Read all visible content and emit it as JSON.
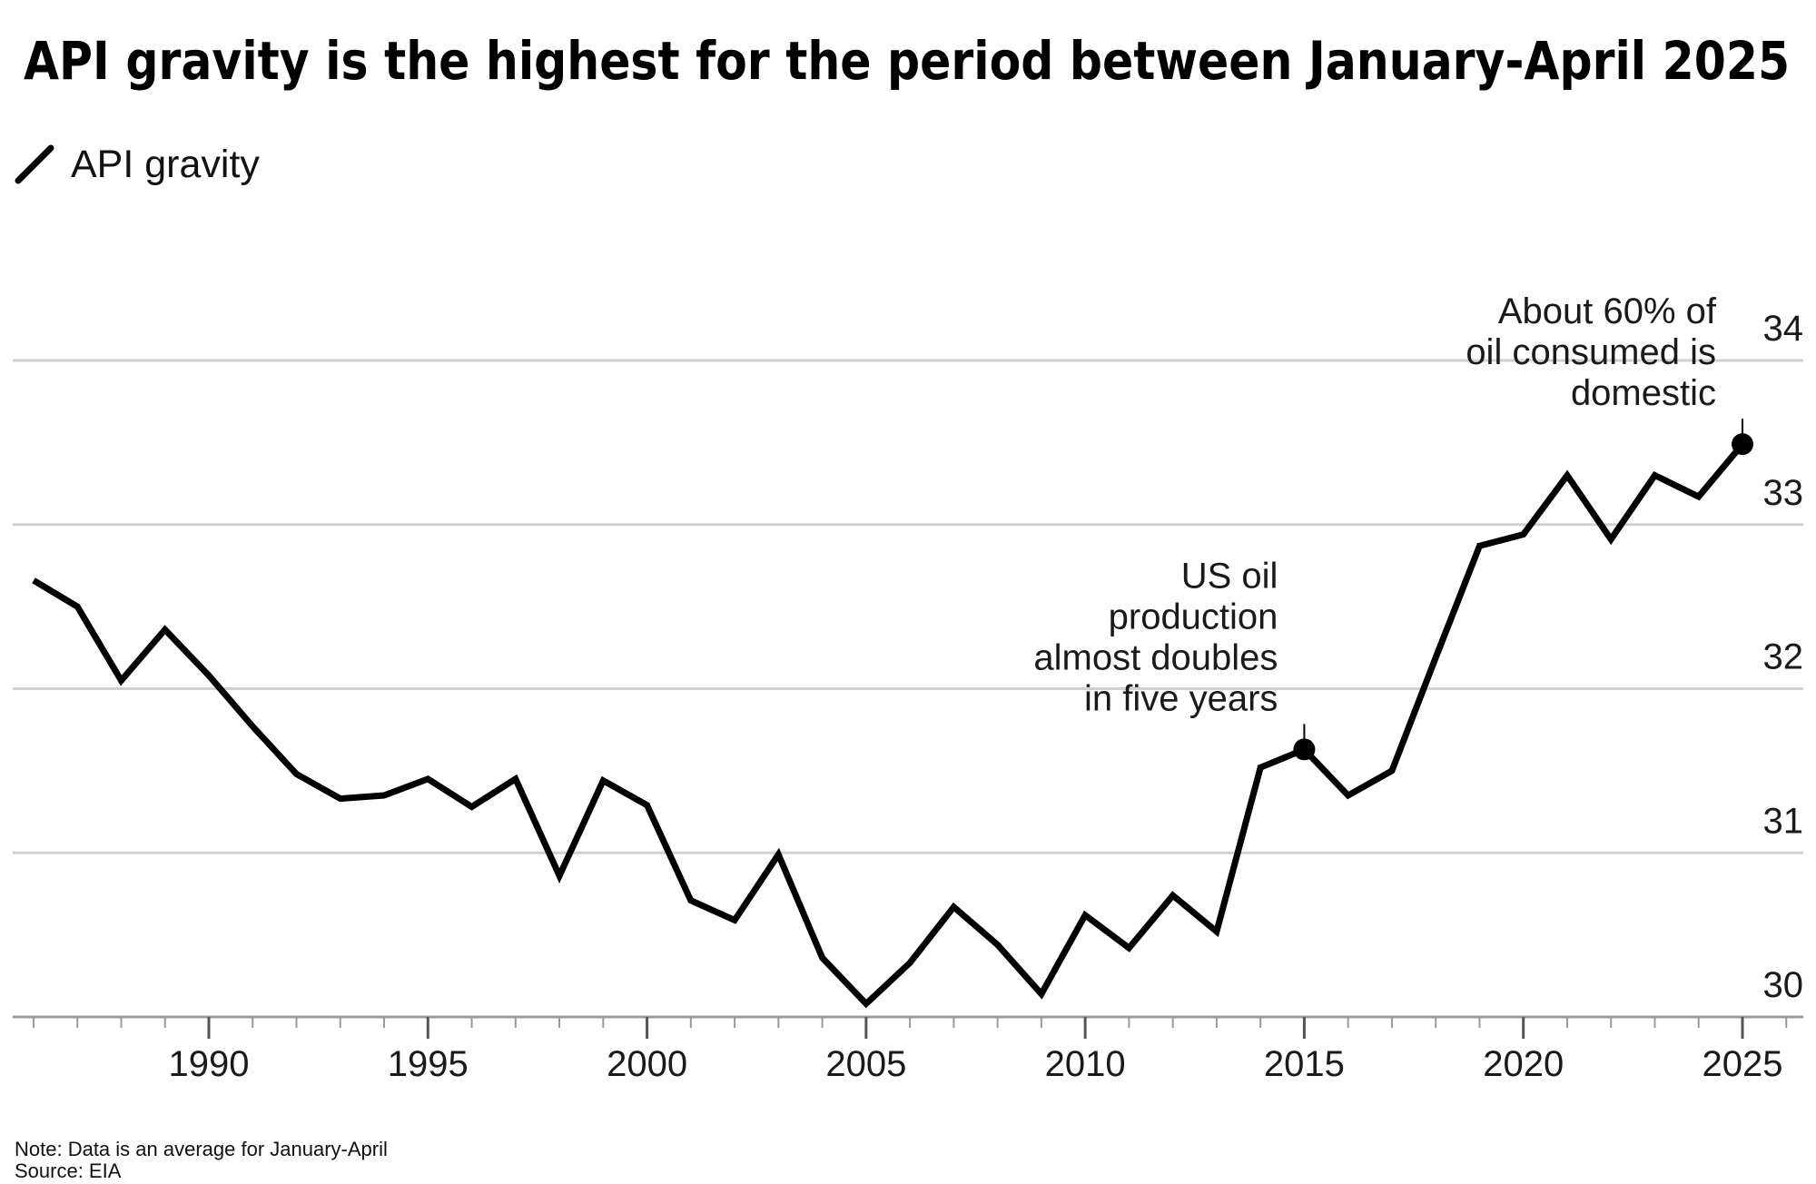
{
  "title": "API gravity is the highest for the period between January-April 2025",
  "legend": {
    "label": "API gravity",
    "icon": "line-swatch-icon"
  },
  "footer": {
    "note": "Note: Data is an average for January-April",
    "source": "Source: EIA"
  },
  "colors": {
    "line": "#000000",
    "grid": "#d0d0d0",
    "axis": "#999999",
    "text": "#1a1a1a"
  },
  "chart_data": {
    "type": "line",
    "title": "API gravity is the highest for the period between January-April 2025",
    "xlabel": "",
    "ylabel": "",
    "x_range": [
      1985.4,
      2026.3
    ],
    "ylim": [
      30,
      34
    ],
    "y_ticks": [
      30,
      31,
      32,
      33,
      34
    ],
    "x_ticks": [
      1990,
      1995,
      2000,
      2005,
      2010,
      2015,
      2020,
      2025
    ],
    "y_axis_position": "right",
    "grid": true,
    "grid_axis": "y",
    "legend_position": "top-left",
    "series": [
      {
        "name": "API gravity",
        "x": [
          1986,
          1987,
          1988,
          1989,
          1990,
          1991,
          1992,
          1993,
          1994,
          1995,
          1996,
          1997,
          1998,
          1999,
          2000,
          2001,
          2002,
          2003,
          2004,
          2005,
          2006,
          2007,
          2008,
          2009,
          2010,
          2011,
          2012,
          2013,
          2014,
          2015,
          2016,
          2017,
          2018,
          2019,
          2020,
          2021,
          2022,
          2023,
          2024,
          2025
        ],
        "values": [
          32.66,
          32.5,
          32.05,
          32.36,
          32.08,
          31.77,
          31.48,
          31.33,
          31.35,
          31.45,
          31.28,
          31.45,
          30.86,
          31.44,
          31.29,
          30.71,
          30.59,
          30.99,
          30.36,
          30.08,
          30.33,
          30.67,
          30.44,
          30.14,
          30.62,
          30.42,
          30.74,
          30.52,
          31.52,
          31.63,
          31.35,
          31.5,
          32.19,
          32.87,
          32.94,
          33.3,
          32.91,
          33.3,
          33.17,
          33.49
        ]
      }
    ],
    "annotations": [
      {
        "x": 2015,
        "y": 31.63,
        "lines": [
          "US oil",
          "production",
          "almost doubles",
          "in five years"
        ]
      },
      {
        "x": 2025,
        "y": 33.49,
        "lines": [
          "About 60% of",
          "oil consumed is",
          "domestic"
        ]
      }
    ]
  }
}
